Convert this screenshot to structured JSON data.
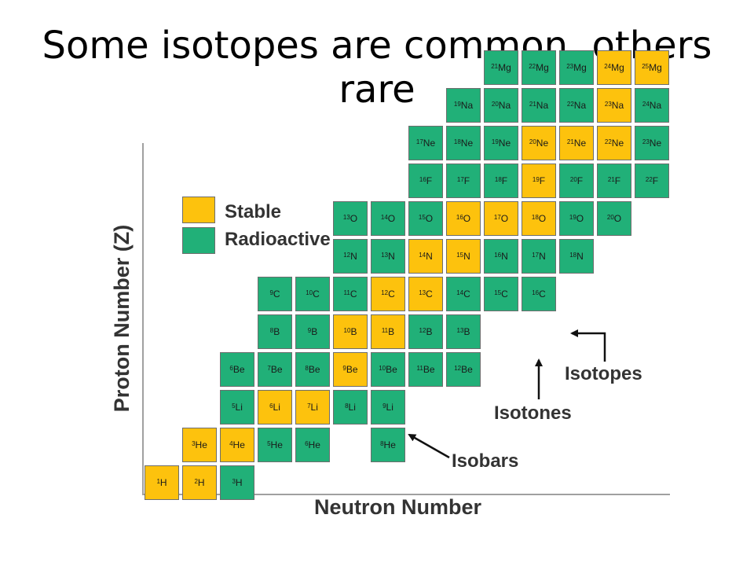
{
  "title": "Some isotopes are common, others rare",
  "colors": {
    "stable": "#fdc20d",
    "radioactive": "#21b078"
  },
  "legend": {
    "stable": "Stable",
    "radioactive": "Radioactive"
  },
  "axes": {
    "y_label": "Proton Number (Z)",
    "x_label": "Neutron Number"
  },
  "annotations": {
    "isotopes": "Isotopes",
    "isotones": "Isotones",
    "isobars": "Isobars"
  },
  "nuclides": [
    {
      "a": "1",
      "el": "H",
      "z": 1,
      "n": 0,
      "stable": true
    },
    {
      "a": "2",
      "el": "H",
      "z": 1,
      "n": 1,
      "stable": true
    },
    {
      "a": "3",
      "el": "H",
      "z": 1,
      "n": 2,
      "stable": false
    },
    {
      "a": "3",
      "el": "He",
      "z": 2,
      "n": 1,
      "stable": true
    },
    {
      "a": "4",
      "el": "He",
      "z": 2,
      "n": 2,
      "stable": true
    },
    {
      "a": "5",
      "el": "He",
      "z": 2,
      "n": 3,
      "stable": false
    },
    {
      "a": "6",
      "el": "He",
      "z": 2,
      "n": 4,
      "stable": false
    },
    {
      "a": "8",
      "el": "He",
      "z": 2,
      "n": 6,
      "stable": false
    },
    {
      "a": "5",
      "el": "Li",
      "z": 3,
      "n": 2,
      "stable": false
    },
    {
      "a": "6",
      "el": "Li",
      "z": 3,
      "n": 3,
      "stable": true
    },
    {
      "a": "7",
      "el": "Li",
      "z": 3,
      "n": 4,
      "stable": true
    },
    {
      "a": "8",
      "el": "Li",
      "z": 3,
      "n": 5,
      "stable": false
    },
    {
      "a": "9",
      "el": "Li",
      "z": 3,
      "n": 6,
      "stable": false
    },
    {
      "a": "6",
      "el": "Be",
      "z": 4,
      "n": 2,
      "stable": false
    },
    {
      "a": "7",
      "el": "Be",
      "z": 4,
      "n": 3,
      "stable": false
    },
    {
      "a": "8",
      "el": "Be",
      "z": 4,
      "n": 4,
      "stable": false
    },
    {
      "a": "9",
      "el": "Be",
      "z": 4,
      "n": 5,
      "stable": true
    },
    {
      "a": "10",
      "el": "Be",
      "z": 4,
      "n": 6,
      "stable": false
    },
    {
      "a": "11",
      "el": "Be",
      "z": 4,
      "n": 7,
      "stable": false
    },
    {
      "a": "12",
      "el": "Be",
      "z": 4,
      "n": 8,
      "stable": false
    },
    {
      "a": "8",
      "el": "B",
      "z": 5,
      "n": 3,
      "stable": false
    },
    {
      "a": "9",
      "el": "B",
      "z": 5,
      "n": 4,
      "stable": false
    },
    {
      "a": "10",
      "el": "B",
      "z": 5,
      "n": 5,
      "stable": true
    },
    {
      "a": "11",
      "el": "B",
      "z": 5,
      "n": 6,
      "stable": true
    },
    {
      "a": "12",
      "el": "B",
      "z": 5,
      "n": 7,
      "stable": false
    },
    {
      "a": "13",
      "el": "B",
      "z": 5,
      "n": 8,
      "stable": false
    },
    {
      "a": "9",
      "el": "C",
      "z": 6,
      "n": 3,
      "stable": false
    },
    {
      "a": "10",
      "el": "C",
      "z": 6,
      "n": 4,
      "stable": false
    },
    {
      "a": "11",
      "el": "C",
      "z": 6,
      "n": 5,
      "stable": false
    },
    {
      "a": "12",
      "el": "C",
      "z": 6,
      "n": 6,
      "stable": true
    },
    {
      "a": "13",
      "el": "C",
      "z": 6,
      "n": 7,
      "stable": true
    },
    {
      "a": "14",
      "el": "C",
      "z": 6,
      "n": 8,
      "stable": false
    },
    {
      "a": "15",
      "el": "C",
      "z": 6,
      "n": 9,
      "stable": false
    },
    {
      "a": "16",
      "el": "C",
      "z": 6,
      "n": 10,
      "stable": false
    },
    {
      "a": "12",
      "el": "N",
      "z": 7,
      "n": 5,
      "stable": false
    },
    {
      "a": "13",
      "el": "N",
      "z": 7,
      "n": 6,
      "stable": false
    },
    {
      "a": "14",
      "el": "N",
      "z": 7,
      "n": 7,
      "stable": true
    },
    {
      "a": "15",
      "el": "N",
      "z": 7,
      "n": 8,
      "stable": true
    },
    {
      "a": "16",
      "el": "N",
      "z": 7,
      "n": 9,
      "stable": false
    },
    {
      "a": "17",
      "el": "N",
      "z": 7,
      "n": 10,
      "stable": false
    },
    {
      "a": "18",
      "el": "N",
      "z": 7,
      "n": 11,
      "stable": false
    },
    {
      "a": "13",
      "el": "O",
      "z": 8,
      "n": 5,
      "stable": false
    },
    {
      "a": "14",
      "el": "O",
      "z": 8,
      "n": 6,
      "stable": false
    },
    {
      "a": "15",
      "el": "O",
      "z": 8,
      "n": 7,
      "stable": false
    },
    {
      "a": "16",
      "el": "O",
      "z": 8,
      "n": 8,
      "stable": true
    },
    {
      "a": "17",
      "el": "O",
      "z": 8,
      "n": 9,
      "stable": true
    },
    {
      "a": "18",
      "el": "O",
      "z": 8,
      "n": 10,
      "stable": true
    },
    {
      "a": "19",
      "el": "O",
      "z": 8,
      "n": 11,
      "stable": false
    },
    {
      "a": "20",
      "el": "O",
      "z": 8,
      "n": 12,
      "stable": false
    },
    {
      "a": "16",
      "el": "F",
      "z": 9,
      "n": 7,
      "stable": false
    },
    {
      "a": "17",
      "el": "F",
      "z": 9,
      "n": 8,
      "stable": false
    },
    {
      "a": "18",
      "el": "F",
      "z": 9,
      "n": 9,
      "stable": false
    },
    {
      "a": "19",
      "el": "F",
      "z": 9,
      "n": 10,
      "stable": true
    },
    {
      "a": "20",
      "el": "F",
      "z": 9,
      "n": 11,
      "stable": false
    },
    {
      "a": "21",
      "el": "F",
      "z": 9,
      "n": 12,
      "stable": false
    },
    {
      "a": "22",
      "el": "F",
      "z": 9,
      "n": 13,
      "stable": false
    },
    {
      "a": "17",
      "el": "Ne",
      "z": 10,
      "n": 7,
      "stable": false
    },
    {
      "a": "18",
      "el": "Ne",
      "z": 10,
      "n": 8,
      "stable": false
    },
    {
      "a": "19",
      "el": "Ne",
      "z": 10,
      "n": 9,
      "stable": false
    },
    {
      "a": "20",
      "el": "Ne",
      "z": 10,
      "n": 10,
      "stable": true
    },
    {
      "a": "21",
      "el": "Ne",
      "z": 10,
      "n": 11,
      "stable": true
    },
    {
      "a": "22",
      "el": "Ne",
      "z": 10,
      "n": 12,
      "stable": true
    },
    {
      "a": "23",
      "el": "Ne",
      "z": 10,
      "n": 13,
      "stable": false
    },
    {
      "a": "19",
      "el": "Na",
      "z": 11,
      "n": 8,
      "stable": false
    },
    {
      "a": "20",
      "el": "Na",
      "z": 11,
      "n": 9,
      "stable": false
    },
    {
      "a": "21",
      "el": "Na",
      "z": 11,
      "n": 10,
      "stable": false
    },
    {
      "a": "22",
      "el": "Na",
      "z": 11,
      "n": 11,
      "stable": false
    },
    {
      "a": "23",
      "el": "Na",
      "z": 11,
      "n": 12,
      "stable": true
    },
    {
      "a": "24",
      "el": "Na",
      "z": 11,
      "n": 13,
      "stable": false
    },
    {
      "a": "21",
      "el": "Mg",
      "z": 12,
      "n": 9,
      "stable": false
    },
    {
      "a": "22",
      "el": "Mg",
      "z": 12,
      "n": 10,
      "stable": false
    },
    {
      "a": "23",
      "el": "Mg",
      "z": 12,
      "n": 11,
      "stable": false
    },
    {
      "a": "24",
      "el": "Mg",
      "z": 12,
      "n": 12,
      "stable": true
    },
    {
      "a": "25",
      "el": "Mg",
      "z": 12,
      "n": 13,
      "stable": true
    }
  ]
}
